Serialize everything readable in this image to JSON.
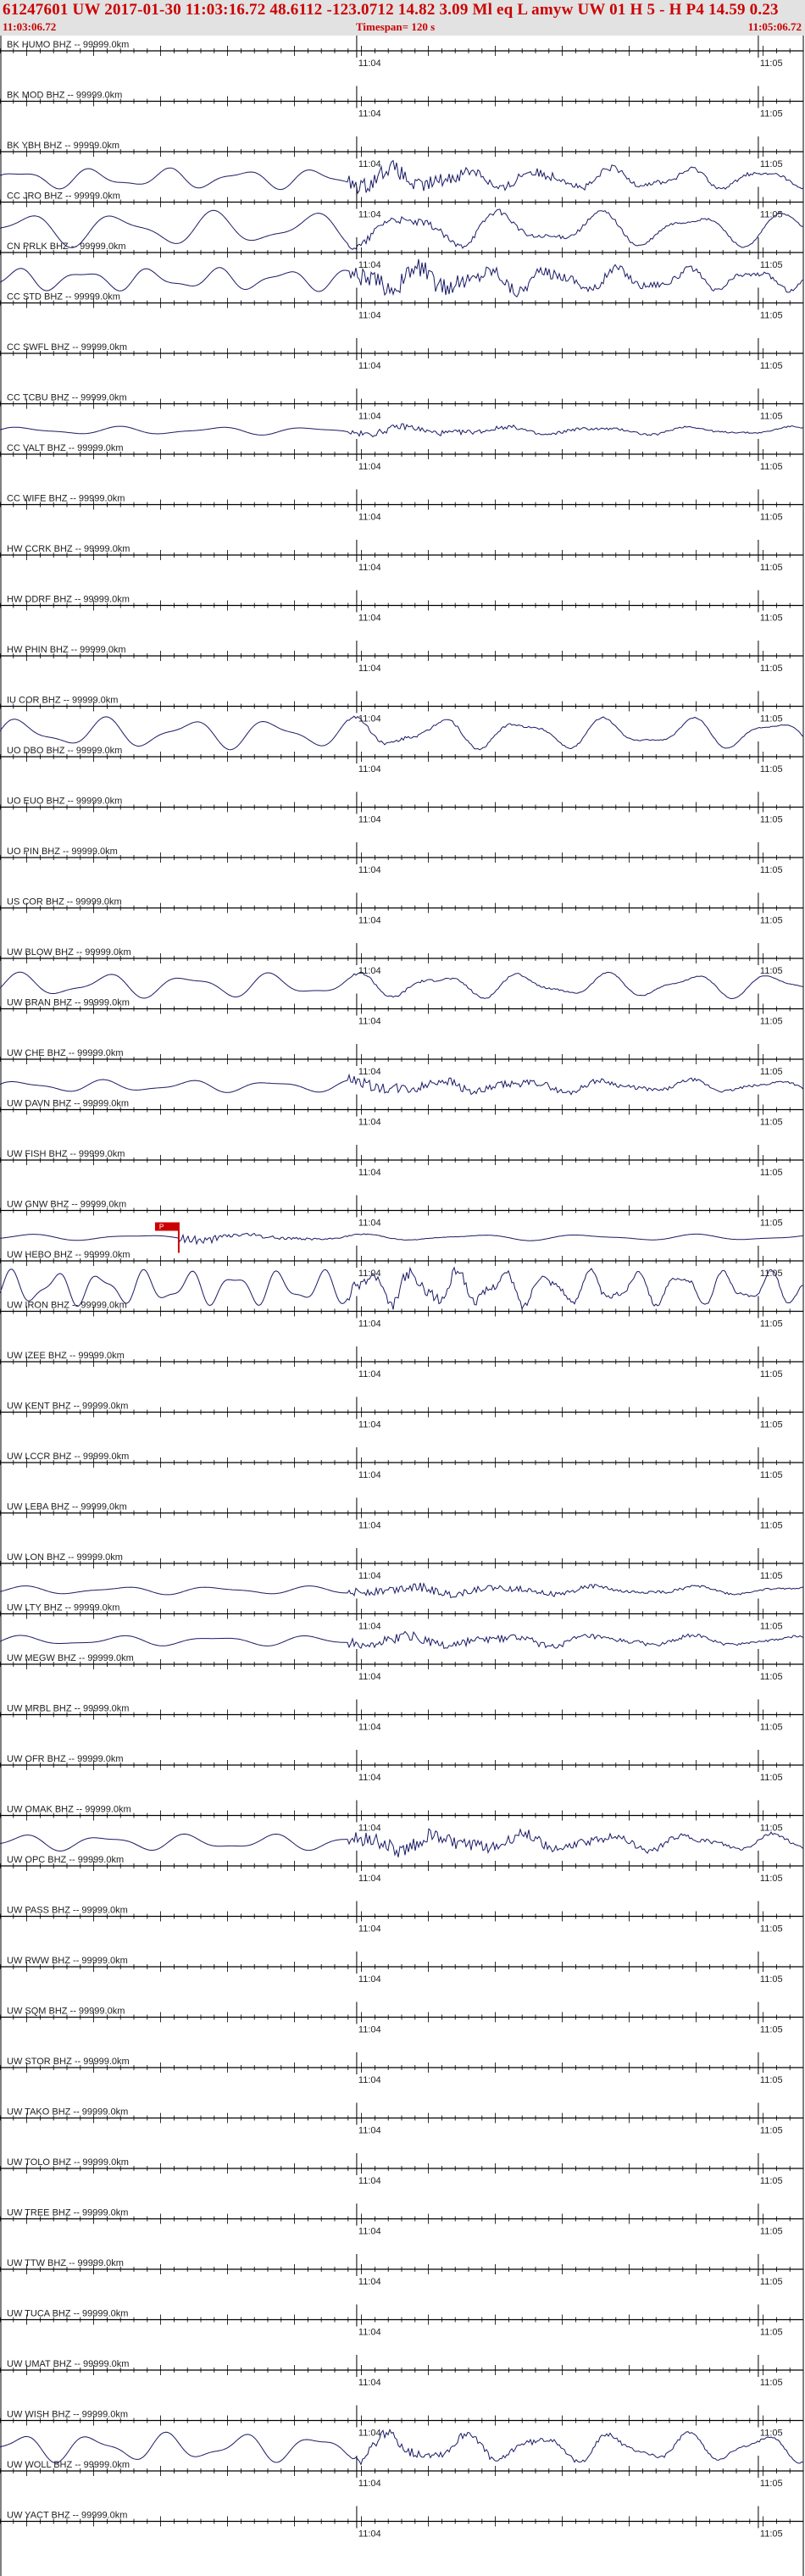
{
  "header": {
    "title": "61247601 UW 2017-01-30 11:03:16.72   48.6112 -123.0712  14.82  3.09 Ml  eq  L amyw     UW 01  H   5   -   H P4    14.59  0.23",
    "start_time": "11:03:06.72",
    "timespan": "Timespan= 120 s",
    "end_time": "11:05:06.72"
  },
  "colors": {
    "header_bg": "#e2e2e2",
    "header_text": "#cc0000",
    "trace": "#1a1a66",
    "axis": "#000000",
    "pick": "#cc0000"
  },
  "chart_data": {
    "type": "line",
    "x_axis": {
      "unit": "s",
      "range": [
        0,
        120
      ],
      "minute_ticks": [
        {
          "label": "11:04",
          "t": 53.28
        },
        {
          "label": "11:05",
          "t": 113.28
        }
      ]
    },
    "pick": {
      "station_index": 23,
      "t": 26.7,
      "label": "P"
    },
    "stations": [
      {
        "label": "BK HUMO BHZ -- 99999.0km",
        "amp": 0,
        "freq": 0,
        "burst": 0
      },
      {
        "label": "BK MOD BHZ -- 99999.0km",
        "amp": 0,
        "freq": 0,
        "burst": 0
      },
      {
        "label": "BK YBH BHZ -- 99999.0km",
        "amp": 0.5,
        "freq": 0.09,
        "burst": 0.7
      },
      {
        "label": "CC JRO BHZ -- 99999.0km",
        "amp": 0.85,
        "freq": 0.07,
        "burst": 0.2
      },
      {
        "label": "CN PRLK BHZ -- 99999.0km",
        "amp": 0.55,
        "freq": 0.1,
        "burst": 0.8
      },
      {
        "label": "CC STD BHZ -- 99999.0km",
        "amp": 0,
        "freq": 0,
        "burst": 0
      },
      {
        "label": "CC SWFL BHZ -- 99999.0km",
        "amp": 0,
        "freq": 0,
        "burst": 0
      },
      {
        "label": "CC TCBU BHZ -- 99999.0km",
        "amp": 0.2,
        "freq": 0.07,
        "burst": 0.7
      },
      {
        "label": "CC VALT BHZ -- 99999.0km",
        "amp": 0,
        "freq": 0,
        "burst": 0
      },
      {
        "label": "CC WIFE BHZ -- 99999.0km",
        "amp": 0,
        "freq": 0,
        "burst": 0
      },
      {
        "label": "HW CCRK BHZ -- 99999.0km",
        "amp": 0,
        "freq": 0,
        "burst": 0
      },
      {
        "label": "HW DDRF BHZ -- 99999.0km",
        "amp": 0,
        "freq": 0,
        "burst": 0
      },
      {
        "label": "HW PHIN BHZ -- 99999.0km",
        "amp": 0,
        "freq": 0,
        "burst": 0
      },
      {
        "label": "IU COR BHZ -- 99999.0km",
        "amp": 0.75,
        "freq": 0.08,
        "burst": 0.1
      },
      {
        "label": "UO DBO BHZ -- 99999.0km",
        "amp": 0,
        "freq": 0,
        "burst": 0
      },
      {
        "label": "UO EUO BHZ -- 99999.0km",
        "amp": 0,
        "freq": 0,
        "burst": 0
      },
      {
        "label": "UO PIN BHZ -- 99999.0km",
        "amp": 0,
        "freq": 0,
        "burst": 0
      },
      {
        "label": "US COR BHZ -- 99999.0km",
        "amp": 0,
        "freq": 0,
        "burst": 0
      },
      {
        "label": "UW BLOW BHZ -- 99999.0km",
        "amp": 0.6,
        "freq": 0.08,
        "burst": 0.1
      },
      {
        "label": "UW BRAN BHZ -- 99999.0km",
        "amp": 0,
        "freq": 0,
        "burst": 0
      },
      {
        "label": "UW CHE BHZ -- 99999.0km",
        "amp": 0.3,
        "freq": 0.08,
        "burst": 0.8
      },
      {
        "label": "UW DAVN BHZ -- 99999.0km",
        "amp": 0,
        "freq": 0,
        "burst": 0
      },
      {
        "label": "UW FISH BHZ -- 99999.0km",
        "amp": 0,
        "freq": 0,
        "burst": 0
      },
      {
        "label": "UW GNW BHZ -- 99999.0km",
        "amp": 0.15,
        "freq": 0.06,
        "burst": 1.6
      },
      {
        "label": "UW HEBO BHZ -- 99999.0km",
        "amp": 0.85,
        "freq": 0.15,
        "burst": 0.3
      },
      {
        "label": "UW IRON BHZ -- 99999.0km",
        "amp": 0,
        "freq": 0,
        "burst": 0
      },
      {
        "label": "UW IZEE BHZ -- 99999.0km",
        "amp": 0,
        "freq": 0,
        "burst": 0
      },
      {
        "label": "UW KENT BHZ -- 99999.0km",
        "amp": 0,
        "freq": 0,
        "burst": 0
      },
      {
        "label": "UW LCCR BHZ -- 99999.0km",
        "amp": 0,
        "freq": 0,
        "burst": 0
      },
      {
        "label": "UW LEBA BHZ -- 99999.0km",
        "amp": 0,
        "freq": 0,
        "burst": 0
      },
      {
        "label": "UW LON BHZ -- 99999.0km",
        "amp": 0.2,
        "freq": 0.07,
        "burst": 1.0
      },
      {
        "label": "UW LTY BHZ -- 99999.0km",
        "amp": 0.25,
        "freq": 0.07,
        "burst": 1.0
      },
      {
        "label": "UW MEGW BHZ -- 99999.0km",
        "amp": 0,
        "freq": 0,
        "burst": 0
      },
      {
        "label": "UW MRBL BHZ -- 99999.0km",
        "amp": 0,
        "freq": 0,
        "burst": 0
      },
      {
        "label": "UW OFR BHZ -- 99999.0km",
        "amp": 0,
        "freq": 0,
        "burst": 0
      },
      {
        "label": "UW OMAK BHZ -- 99999.0km",
        "amp": 0.4,
        "freq": 0.08,
        "burst": 0.9
      },
      {
        "label": "UW OPC BHZ -- 99999.0km",
        "amp": 0,
        "freq": 0,
        "burst": 0
      },
      {
        "label": "UW PASS BHZ -- 99999.0km",
        "amp": 0,
        "freq": 0,
        "burst": 0
      },
      {
        "label": "UW RWW BHZ -- 99999.0km",
        "amp": 0,
        "freq": 0,
        "burst": 0
      },
      {
        "label": "UW SQM BHZ -- 99999.0km",
        "amp": 0,
        "freq": 0,
        "burst": 0
      },
      {
        "label": "UW STOR BHZ -- 99999.0km",
        "amp": 0,
        "freq": 0,
        "burst": 0
      },
      {
        "label": "UW TAKO BHZ -- 99999.0km",
        "amp": 0,
        "freq": 0,
        "burst": 0
      },
      {
        "label": "UW TOLO BHZ -- 99999.0km",
        "amp": 0,
        "freq": 0,
        "burst": 0
      },
      {
        "label": "UW TREE BHZ -- 99999.0km",
        "amp": 0,
        "freq": 0,
        "burst": 0
      },
      {
        "label": "UW TTW BHZ -- 99999.0km",
        "amp": 0,
        "freq": 0,
        "burst": 0
      },
      {
        "label": "UW TUCA BHZ -- 99999.0km",
        "amp": 0,
        "freq": 0,
        "burst": 0
      },
      {
        "label": "UW UMAT BHZ -- 99999.0km",
        "amp": 0,
        "freq": 0,
        "burst": 0
      },
      {
        "label": "UW WISH BHZ -- 99999.0km",
        "amp": 0.7,
        "freq": 0.09,
        "burst": 0.3
      },
      {
        "label": "UW WOLL BHZ -- 99999.0km",
        "amp": 0,
        "freq": 0,
        "burst": 0
      },
      {
        "label": "UW YACT BHZ -- 99999.0km",
        "amp": 0,
        "freq": 0,
        "burst": 0
      }
    ]
  }
}
